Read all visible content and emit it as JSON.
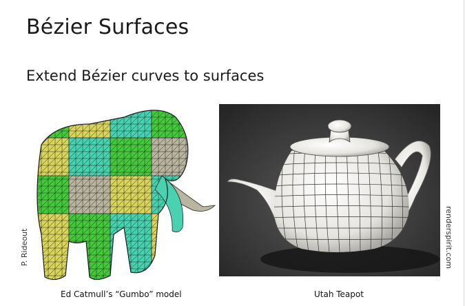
{
  "slide": {
    "title": "Bézier Surfaces",
    "subtitle": "Extend Bézier curves to surfaces"
  },
  "figures": [
    {
      "caption": "Ed Catmull’s “Gumbo” model",
      "credit": "P. Rideout",
      "icon": "elephant-mesh-image",
      "colors": [
        "#46c73e",
        "#d9d460",
        "#49d1b0",
        "#b9b5a0"
      ]
    },
    {
      "caption": "Utah Teapot",
      "credit": "renderspirit.com",
      "icon": "teapot-render-image",
      "colors": [
        "#2b2b2b",
        "#f0efec"
      ]
    }
  ]
}
